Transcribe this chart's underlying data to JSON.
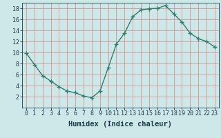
{
  "x": [
    0,
    1,
    2,
    3,
    4,
    5,
    6,
    7,
    8,
    9,
    10,
    11,
    12,
    13,
    14,
    15,
    16,
    17,
    18,
    19,
    20,
    21,
    22,
    23
  ],
  "y": [
    9.9,
    7.8,
    5.8,
    4.8,
    3.8,
    3.0,
    2.7,
    2.1,
    1.8,
    3.0,
    7.2,
    11.5,
    13.5,
    16.5,
    17.7,
    17.9,
    18.0,
    18.5,
    17.0,
    15.5,
    13.5,
    12.5,
    12.0,
    11.0
  ],
  "line_color": "#2e7d6e",
  "marker": "+",
  "bg_color": "#cce8e8",
  "grid_color": "#e08080",
  "xlabel": "Humidex (Indice chaleur)",
  "xlim": [
    -0.5,
    23.5
  ],
  "ylim": [
    0,
    19
  ],
  "yticks": [
    2,
    4,
    6,
    8,
    10,
    12,
    14,
    16,
    18
  ],
  "xticks": [
    0,
    1,
    2,
    3,
    4,
    5,
    6,
    7,
    8,
    9,
    10,
    11,
    12,
    13,
    14,
    15,
    16,
    17,
    18,
    19,
    20,
    21,
    22,
    23
  ],
  "label_color": "#1a3a4a",
  "font_size": 6.0,
  "xlabel_fontsize": 7.5,
  "linewidth": 1.0,
  "markersize": 4,
  "markeredgewidth": 1.0
}
